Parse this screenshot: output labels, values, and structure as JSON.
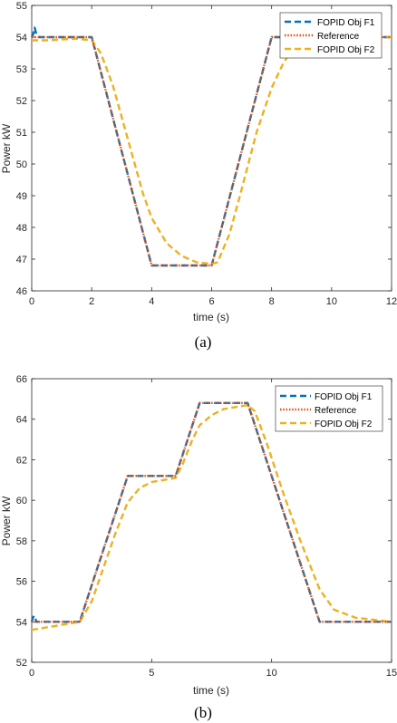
{
  "colors": {
    "f1": "#0072BD",
    "ref": "#D95319",
    "f2": "#EDB120",
    "refdark": "#7E2F8E"
  },
  "chart_data": [
    {
      "type": "line",
      "caption": "(a)",
      "xlabel": "time (s)",
      "ylabel": "Power kW",
      "xlim": [
        0,
        12
      ],
      "ylim": [
        46,
        55
      ],
      "xticks": [
        0,
        2,
        4,
        6,
        8,
        10,
        12
      ],
      "yticks": [
        46,
        47,
        48,
        49,
        50,
        51,
        52,
        53,
        54,
        55
      ],
      "legend": "top-right",
      "series": [
        {
          "name": "FOPID Obj F1",
          "style": "dashed",
          "color": "#0072BD",
          "x": [
            0,
            0.05,
            0.1,
            0.15,
            0.25,
            2,
            4,
            6,
            8,
            12
          ],
          "y": [
            54,
            54.1,
            54.3,
            54.1,
            54,
            54,
            46.8,
            46.8,
            54,
            54
          ]
        },
        {
          "name": "Reference",
          "style": "dotted",
          "color": "#D95319",
          "x": [
            0,
            2,
            4,
            6,
            8,
            12
          ],
          "y": [
            54,
            54,
            46.8,
            46.8,
            54,
            54
          ]
        },
        {
          "name": "FOPID Obj F2",
          "style": "dashed",
          "color": "#EDB120",
          "x": [
            0,
            0.5,
            1.5,
            2.0,
            2.3,
            2.7,
            3.2,
            3.7,
            4.0,
            4.5,
            5.0,
            5.5,
            6.0,
            6.2,
            6.6,
            7.0,
            7.5,
            8.0,
            8.4,
            8.7,
            9.0,
            9.5,
            10,
            11,
            12
          ],
          "y": [
            53.9,
            53.9,
            53.95,
            53.9,
            53.5,
            52.5,
            50.8,
            49.1,
            48.3,
            47.5,
            47.1,
            46.9,
            46.85,
            46.9,
            47.8,
            49.2,
            51.0,
            52.4,
            53.2,
            53.6,
            53.85,
            53.95,
            54,
            54,
            54
          ]
        }
      ]
    },
    {
      "type": "line",
      "caption": "(b)",
      "xlabel": "time (s)",
      "ylabel": "Power kW",
      "xlim": [
        0,
        15
      ],
      "ylim": [
        52,
        66
      ],
      "xticks": [
        0,
        5,
        10,
        15
      ],
      "yticks": [
        52,
        54,
        56,
        58,
        60,
        62,
        64,
        66
      ],
      "legend": "top-right",
      "series": [
        {
          "name": "FOPID Obj F1",
          "style": "dashed",
          "color": "#0072BD",
          "x": [
            0,
            0.05,
            0.1,
            0.2,
            2,
            4,
            6,
            7,
            9,
            12,
            15
          ],
          "y": [
            54,
            54.2,
            54.3,
            54,
            54,
            61.2,
            61.2,
            64.8,
            64.8,
            54,
            54
          ]
        },
        {
          "name": "Reference",
          "style": "dotted",
          "color": "#D95319",
          "x": [
            0,
            2,
            4,
            6,
            7,
            9,
            12,
            15
          ],
          "y": [
            54,
            54,
            61.2,
            61.2,
            64.8,
            64.8,
            54,
            54
          ]
        },
        {
          "name": "FOPID Obj F2",
          "style": "dashed",
          "color": "#EDB120",
          "x": [
            0,
            0.5,
            1.5,
            2.0,
            2.5,
            3.0,
            3.5,
            4.0,
            4.5,
            5.0,
            5.5,
            6.0,
            6.3,
            6.7,
            7.0,
            7.5,
            8.0,
            8.5,
            9.0,
            9.3,
            9.8,
            10.5,
            11.2,
            12.0,
            12.6,
            13.5,
            15
          ],
          "y": [
            53.6,
            53.7,
            53.9,
            54.0,
            55.0,
            56.7,
            58.4,
            59.9,
            60.6,
            60.9,
            61.0,
            61.1,
            61.8,
            63.0,
            63.7,
            64.2,
            64.5,
            64.6,
            64.7,
            64.4,
            62.8,
            60.3,
            58.0,
            55.6,
            54.6,
            54.2,
            54.0
          ]
        }
      ]
    }
  ]
}
